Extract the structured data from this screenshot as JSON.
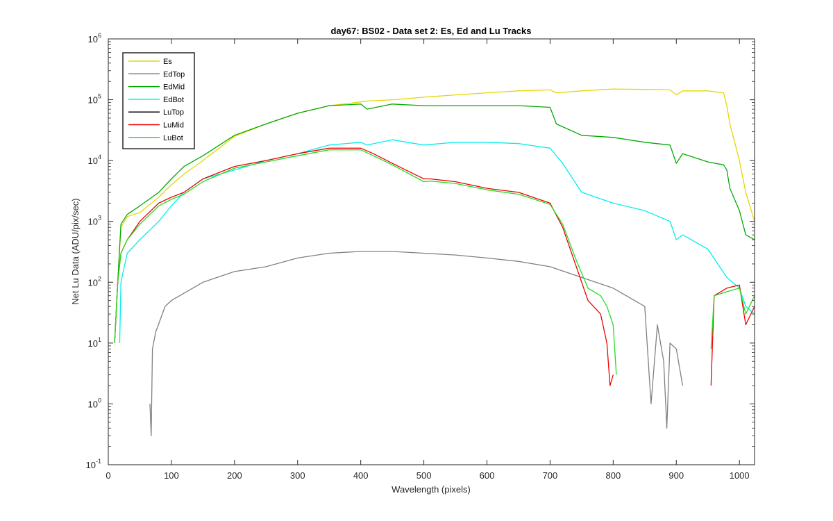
{
  "chart_data": {
    "type": "line",
    "title": "day67: BS02 - Data set 2: Es, Ed and Lu Tracks",
    "xlabel": "Wavelength (pixels)",
    "ylabel": "Net Lu Data (ADU/pix/sec)",
    "xlim": [
      0,
      1024
    ],
    "ylim": [
      0.1,
      1000000
    ],
    "yscale": "log",
    "xticks": [
      "0",
      "100",
      "200",
      "300",
      "400",
      "500",
      "600",
      "700",
      "800",
      "900",
      "1000"
    ],
    "yticks": [
      {
        "base": "10",
        "exp": "-1"
      },
      {
        "base": "10",
        "exp": "0"
      },
      {
        "base": "10",
        "exp": "1"
      },
      {
        "base": "10",
        "exp": "2"
      },
      {
        "base": "10",
        "exp": "3"
      },
      {
        "base": "10",
        "exp": "4"
      },
      {
        "base": "10",
        "exp": "5"
      },
      {
        "base": "10",
        "exp": "6"
      }
    ],
    "grid": false,
    "legend": "top-left",
    "series": [
      {
        "name": "Es",
        "color": "#e6d600",
        "x": [
          10,
          15,
          20,
          30,
          50,
          80,
          100,
          120,
          150,
          200,
          250,
          300,
          350,
          400,
          410,
          450,
          500,
          550,
          600,
          650,
          700,
          710,
          750,
          800,
          850,
          890,
          900,
          910,
          950,
          975,
          980,
          985,
          1000,
          1010,
          1024
        ],
        "y": [
          10,
          100,
          800,
          1200,
          1400,
          2500,
          4000,
          6000,
          10000,
          25000,
          40000,
          60000,
          80000,
          92000,
          95000,
          100000,
          110000,
          120000,
          130000,
          140000,
          145000,
          130000,
          140000,
          150000,
          148000,
          145000,
          120000,
          140000,
          140000,
          130000,
          80000,
          40000,
          10000,
          3000,
          1000
        ]
      },
      {
        "name": "EdTop",
        "color": "#808080",
        "x": [
          66,
          68,
          70,
          75,
          90,
          100,
          150,
          200,
          250,
          300,
          350,
          400,
          450,
          500,
          550,
          600,
          650,
          700,
          750,
          800,
          850,
          860,
          870,
          880,
          885,
          890,
          900,
          910
        ],
        "y": [
          1,
          0.3,
          8,
          15,
          40,
          50,
          100,
          150,
          180,
          250,
          300,
          320,
          320,
          300,
          280,
          250,
          220,
          180,
          120,
          80,
          40,
          1,
          20,
          5,
          0.4,
          10,
          8,
          2
        ]
      },
      {
        "name": "EdMid",
        "color": "#00aa00",
        "x": [
          10,
          15,
          20,
          30,
          50,
          80,
          100,
          120,
          150,
          200,
          250,
          300,
          350,
          400,
          410,
          450,
          500,
          550,
          600,
          650,
          700,
          710,
          750,
          800,
          850,
          890,
          900,
          910,
          950,
          975,
          980,
          985,
          1000,
          1010,
          1024
        ],
        "y": [
          10,
          100,
          900,
          1300,
          1800,
          3000,
          5000,
          8000,
          12000,
          26000,
          40000,
          60000,
          80000,
          85000,
          70000,
          85000,
          80000,
          80000,
          80000,
          80000,
          75000,
          40000,
          26000,
          24000,
          20000,
          18000,
          9000,
          13000,
          9500,
          8500,
          7000,
          3500,
          1500,
          600,
          500
        ]
      },
      {
        "name": "EdBot",
        "color": "#00eeee",
        "x": [
          18,
          20,
          30,
          50,
          80,
          100,
          120,
          150,
          200,
          250,
          300,
          350,
          400,
          410,
          450,
          500,
          550,
          600,
          650,
          700,
          720,
          750,
          800,
          850,
          890,
          900,
          910,
          950,
          980,
          1000,
          1010,
          1024
        ],
        "y": [
          10,
          100,
          300,
          500,
          1000,
          1800,
          3000,
          5000,
          7000,
          10000,
          13000,
          18000,
          20000,
          18000,
          22000,
          18000,
          20000,
          20000,
          19000,
          16000,
          9000,
          3000,
          2000,
          1500,
          1000,
          500,
          600,
          350,
          120,
          80,
          40,
          30
        ]
      },
      {
        "name": "LuTop",
        "color": "#000000",
        "x": [],
        "y": []
      },
      {
        "name": "LuMid",
        "color": "#ee0000",
        "x": [
          10,
          15,
          20,
          30,
          50,
          80,
          100,
          120,
          150,
          200,
          250,
          300,
          350,
          400,
          420,
          450,
          500,
          510,
          550,
          600,
          650,
          700,
          720,
          740,
          760,
          780,
          790,
          795,
          800,
          955,
          960,
          980,
          1000,
          1010,
          1024
        ],
        "y": [
          10,
          100,
          300,
          500,
          1000,
          2000,
          2500,
          3000,
          5000,
          8000,
          10000,
          13000,
          16000,
          16000,
          13000,
          9000,
          5000,
          5000,
          4500,
          3500,
          3000,
          2000,
          800,
          200,
          50,
          30,
          10,
          2,
          3,
          2,
          60,
          80,
          90,
          20,
          40
        ]
      },
      {
        "name": "LuBot",
        "color": "#22dd22",
        "x": [
          10,
          15,
          20,
          30,
          50,
          80,
          100,
          120,
          150,
          200,
          250,
          300,
          350,
          400,
          420,
          450,
          500,
          510,
          550,
          600,
          650,
          700,
          720,
          740,
          760,
          780,
          790,
          800,
          805,
          955,
          960,
          980,
          1000,
          1010,
          1024
        ],
        "y": [
          10,
          100,
          300,
          500,
          900,
          1800,
          2300,
          2800,
          4500,
          7500,
          9500,
          12000,
          15000,
          15000,
          12000,
          8500,
          4500,
          4600,
          4200,
          3300,
          2800,
          1900,
          900,
          250,
          80,
          60,
          40,
          20,
          3,
          8,
          60,
          70,
          80,
          30,
          60
        ]
      }
    ]
  }
}
